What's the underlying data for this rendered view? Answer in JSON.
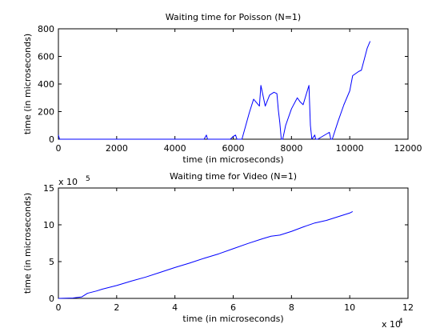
{
  "chart_data": [
    {
      "type": "line",
      "title": "Waiting time for Poisson (N=1)",
      "xlabel": "time (in microseconds)",
      "ylabel": "time (in microseconds)",
      "xlim": [
        0,
        12000
      ],
      "ylim": [
        0,
        800
      ],
      "xticks": [
        0,
        2000,
        4000,
        6000,
        8000,
        10000,
        12000
      ],
      "yticks": [
        0,
        200,
        400,
        600,
        800
      ],
      "x_tick_labels": [
        "0",
        "2000",
        "4000",
        "6000",
        "8000",
        "10000",
        "12000"
      ],
      "y_tick_labels": [
        "0",
        "200",
        "400",
        "600",
        "800"
      ],
      "line_color": "#0000ff",
      "grid": false,
      "series": [
        {
          "x": [
            0,
            40,
            80,
            5000,
            5080,
            5120,
            5900,
            6000,
            6080,
            6130,
            6300,
            6550,
            6700,
            6900,
            6950,
            7100,
            7250,
            7400,
            7500,
            7550,
            7600,
            7650,
            7700,
            7800,
            8000,
            8200,
            8300,
            8400,
            8600,
            8650,
            8700,
            8800,
            8830,
            8900,
            9300,
            9350,
            9400,
            9600,
            9800,
            10000,
            10100,
            10300,
            10400,
            10500,
            10600,
            10700
          ],
          "y": [
            30,
            0,
            0,
            0,
            30,
            0,
            0,
            20,
            30,
            0,
            0,
            190,
            290,
            240,
            390,
            240,
            320,
            340,
            330,
            210,
            120,
            0,
            0,
            100,
            220,
            300,
            270,
            250,
            390,
            100,
            0,
            30,
            0,
            0,
            50,
            0,
            0,
            130,
            250,
            350,
            460,
            490,
            500,
            580,
            660,
            710
          ]
        }
      ]
    },
    {
      "type": "line",
      "title": "Waiting time for Video (N=1)",
      "xlabel": "time (in microseconds)",
      "ylabel": "time (in microseconds)",
      "xlim": [
        0,
        12
      ],
      "ylim": [
        0,
        15
      ],
      "x_multiplier": "x 10",
      "x_exponent": "4",
      "y_multiplier": "x 10",
      "y_exponent": "5",
      "xticks": [
        0,
        2,
        4,
        6,
        8,
        10,
        12
      ],
      "yticks": [
        0,
        5,
        10,
        15
      ],
      "x_tick_labels": [
        "0",
        "2",
        "4",
        "6",
        "8",
        "10",
        "12"
      ],
      "y_tick_labels": [
        "0",
        "5",
        "10",
        "15"
      ],
      "line_color": "#0000ff",
      "grid": false,
      "series": [
        {
          "x": [
            0,
            0.5,
            0.8,
            1.0,
            1.3,
            1.5,
            2.0,
            2.5,
            3.0,
            3.5,
            4.0,
            4.5,
            5.0,
            5.5,
            6.0,
            6.5,
            7.0,
            7.3,
            7.6,
            8.0,
            8.4,
            8.8,
            9.2,
            9.6,
            10.0,
            10.1
          ],
          "y": [
            0,
            0.05,
            0.2,
            0.7,
            1.0,
            1.25,
            1.75,
            2.35,
            2.9,
            3.55,
            4.2,
            4.8,
            5.45,
            6.05,
            6.75,
            7.45,
            8.1,
            8.45,
            8.6,
            9.1,
            9.7,
            10.25,
            10.6,
            11.1,
            11.6,
            11.8
          ]
        }
      ]
    }
  ]
}
